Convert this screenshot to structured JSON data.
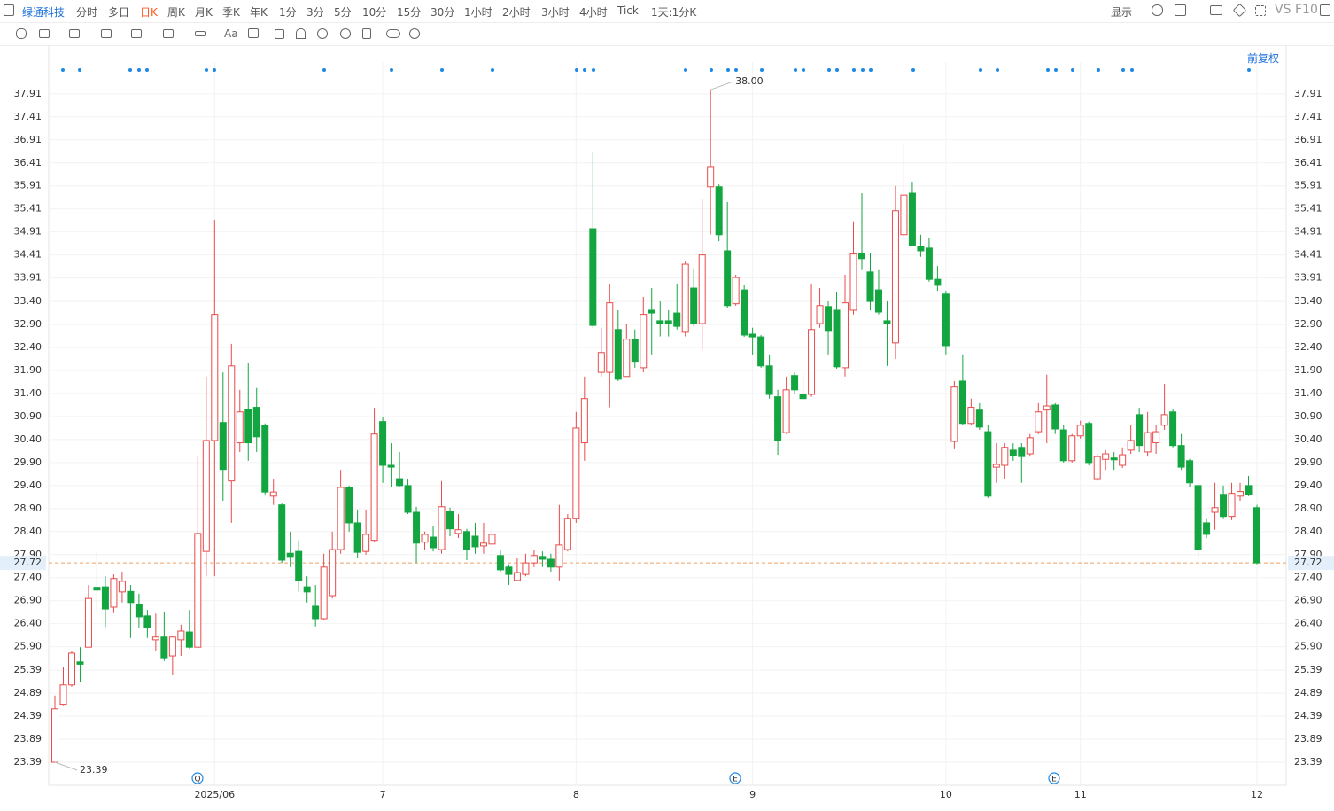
{
  "toolbar": {
    "stock": "绿通科技",
    "periods": [
      "分时",
      "多日",
      "日K",
      "周K",
      "月K",
      "季K",
      "年K",
      "1分",
      "3分",
      "5分",
      "10分",
      "15分",
      "30分",
      "1小时",
      "2小时",
      "3小时",
      "4小时",
      "Tick"
    ],
    "custom": "1天:1分K",
    "display": "显示",
    "vs": "VS",
    "f10": "F10",
    "text_tool": "Aa",
    "adjust": "前复权"
  },
  "badges": [
    "Q",
    "E",
    "E"
  ],
  "chart_data": {
    "type": "candlestick",
    "up_color": "#e84a4a",
    "down_color": "#13a640",
    "grid": true,
    "ylim": [
      22.89,
      38.6
    ],
    "yticks": [
      23.39,
      23.89,
      24.39,
      24.89,
      25.39,
      {
        "value": 25.9,
        "label": "25.90"
      },
      {
        "value": 26.4,
        "label": "26.40"
      },
      {
        "value": 26.9,
        "label": "26.90"
      },
      {
        "value": 27.4,
        "label": "27.40"
      },
      {
        "value": 27.9,
        "label": "27.90"
      },
      {
        "value": 28.4,
        "label": "28.40"
      },
      {
        "value": 28.9,
        "label": "28.90"
      },
      {
        "value": 29.4,
        "label": "29.40"
      },
      {
        "value": 29.9,
        "label": "29.90"
      },
      {
        "value": 30.4,
        "label": "30.40"
      },
      {
        "value": 30.9,
        "label": "30.90"
      },
      {
        "value": 31.4,
        "label": "31.40"
      },
      {
        "value": 31.9,
        "label": "31.90"
      },
      {
        "value": 32.4,
        "label": "32.40"
      },
      {
        "value": 32.9,
        "label": "32.90"
      },
      {
        "value": 33.4,
        "label": "33.40"
      },
      33.91,
      34.41,
      34.91,
      35.41,
      35.91,
      36.41,
      36.91,
      37.41,
      37.91
    ],
    "last_price": 27.72,
    "annotations": [
      {
        "value": 38,
        "label": "38.00"
      },
      {
        "value": 23.39,
        "label": "23.39"
      }
    ],
    "categories": [
      null,
      null,
      null,
      null,
      null,
      null,
      null,
      null,
      null,
      null,
      null,
      null,
      null,
      null,
      null,
      null,
      null,
      null,
      null,
      "2025/06",
      null,
      null,
      null,
      null,
      null,
      null,
      null,
      null,
      null,
      null,
      null,
      null,
      null,
      null,
      null,
      null,
      null,
      null,
      null,
      "7",
      null,
      null,
      null,
      null,
      null,
      null,
      null,
      null,
      null,
      null,
      null,
      null,
      null,
      null,
      null,
      null,
      null,
      null,
      null,
      null,
      null,
      null,
      "8",
      null,
      null,
      null,
      null,
      null,
      null,
      null,
      null,
      null,
      null,
      null,
      null,
      null,
      null,
      null,
      null,
      null,
      null,
      null,
      null,
      "9",
      null,
      null,
      null,
      null,
      null,
      null,
      null,
      null,
      null,
      null,
      null,
      null,
      null,
      null,
      null,
      null,
      null,
      null,
      null,
      null,
      null,
      null,
      "10",
      null,
      null,
      null,
      null,
      null,
      null,
      null,
      null,
      null,
      null,
      null,
      null,
      null,
      null,
      null,
      "11",
      null,
      null,
      null,
      null,
      null,
      null,
      null,
      null,
      null,
      null,
      null,
      null,
      null,
      null,
      null,
      null,
      null,
      null,
      null,
      null,
      "12"
    ],
    "open": [
      23.39,
      24.65,
      25.07,
      25.57,
      25.89,
      27.19,
      27.2,
      26.76,
      27.09,
      27.1,
      26.82,
      26.57,
      26.05,
      26.11,
      25.7,
      26.05,
      26.22,
      25.89,
      27.97,
      30.38,
      30.77,
      29.5,
      30.33,
      31.06,
      31.1,
      30.71,
      29.17,
      28.98,
      27.93,
      27.97,
      27.2,
      26.78,
      26.51,
      27.01,
      28.01,
      29.36,
      28.59,
      27.97,
      28.21,
      30.79,
      29.84,
      29.55,
      29.4,
      28.82,
      28.17,
      28.28,
      28.01,
      28.84,
      28.36,
      28.4,
      28.3,
      28.09,
      28.13,
      27.88,
      27.63,
      27.34,
      27.47,
      27.72,
      27.86,
      27.8,
      27.63,
      28.01,
      28.69,
      30.33,
      34.98,
      31.86,
      31.86,
      32.79,
      31.77,
      32.58,
      31.96,
      33.21,
      32.98,
      32.98,
      33.15,
      32.73,
      33.69,
      32.92,
      35.89,
      35.89,
      34.5,
      33.35,
      33.65,
      32.69,
      32.63,
      32,
      31.33,
      30.55,
      31.79,
      31.38,
      31.38,
      32.92,
      33.29,
      33.21,
      31.96,
      33.21,
      34.45,
      34.04,
      33.65,
      32.98,
      32.5,
      34.85,
      35.75,
      34.6,
      34.56,
      33.88,
      33.56,
      30.36,
      31.67,
      30.75,
      31.04,
      30.57,
      29.8,
      29.84,
      30.17,
      30.23,
      30.09,
      30.57,
      31.04,
      31.15,
      30.61,
      29.94,
      30.48,
      30.75,
      29.55,
      29.97,
      30,
      29.84,
      30.17,
      30.94,
      30.13,
      30.33,
      30.71,
      31,
      30.27,
      29.94,
      29.4,
      28.59,
      28.82,
      29.21,
      28.73,
      29.17,
      29.4,
      28.92
    ],
    "high": [
      24.84,
      25.47,
      25.8,
      25.89,
      27.24,
      27.95,
      27.43,
      27.47,
      27.53,
      27.24,
      27.05,
      26.7,
      26.62,
      26.66,
      26.13,
      26.38,
      26.7,
      30.03,
      31.77,
      35.17,
      31.86,
      32.48,
      31.48,
      32.06,
      31.52,
      30.75,
      29.55,
      29.01,
      28.4,
      28.21,
      27.43,
      27.24,
      27.92,
      28.4,
      29.74,
      29.4,
      28.88,
      28.88,
      31.09,
      30.9,
      30.32,
      30.13,
      29.55,
      28.94,
      28.4,
      28.51,
      29.5,
      28.92,
      28.78,
      28.46,
      28.59,
      28.59,
      28.46,
      28.01,
      27.69,
      27.82,
      27.92,
      28.01,
      27.97,
      27.92,
      28.98,
      28.78,
      31,
      31.77,
      36.64,
      32.83,
      33.79,
      33.21,
      32.92,
      32.79,
      33.5,
      33.69,
      33.4,
      33.21,
      33.79,
      34.27,
      34.12,
      35.62,
      38,
      35.94,
      35.56,
      33.98,
      33.75,
      32.83,
      32.67,
      32.25,
      31.48,
      31.77,
      31.86,
      31.86,
      33.79,
      33.69,
      33.4,
      33.6,
      33.98,
      35.14,
      35.75,
      34.46,
      34.08,
      33.4,
      35.91,
      36.81,
      36,
      34.85,
      34.79,
      34.17,
      33.63,
      31.67,
      32.25,
      31.29,
      31.19,
      30.71,
      30.32,
      30.32,
      30.32,
      30.32,
      30.52,
      31.19,
      31.81,
      31.19,
      30.71,
      30.52,
      30.81,
      30.79,
      30.09,
      30.17,
      30.13,
      30.23,
      30.71,
      31.09,
      31,
      30.71,
      31.61,
      31.06,
      30.52,
      29.98,
      29.46,
      28.69,
      29.46,
      29.4,
      29.46,
      29.46,
      29.61,
      28.98
    ],
    "low": [
      23.39,
      24.63,
      25.03,
      25.13,
      25.89,
      26.66,
      26.33,
      26.63,
      26.86,
      26.09,
      26.32,
      26.09,
      25.8,
      25.59,
      25.28,
      25.7,
      25.86,
      25.89,
      27.43,
      27.43,
      29.07,
      28.59,
      30.13,
      29.94,
      30.13,
      29.21,
      28.98,
      27.72,
      27.63,
      27.09,
      26.86,
      26.34,
      26.47,
      26.95,
      27.92,
      28.4,
      27.82,
      27.9,
      28.17,
      29.46,
      29.36,
      29.36,
      28.78,
      27.72,
      28.01,
      27.97,
      27.92,
      28.3,
      28.26,
      27.78,
      27.92,
      27.92,
      27.82,
      27.53,
      27.24,
      27.34,
      27.43,
      27.63,
      27.63,
      27.53,
      27.34,
      27.97,
      28.59,
      29.94,
      32.83,
      31.77,
      31.1,
      31.67,
      31.77,
      31.96,
      31.86,
      32.25,
      32.64,
      32.64,
      32.79,
      32.64,
      32.86,
      32.35,
      34.85,
      34.71,
      33.25,
      33.31,
      32.63,
      32.25,
      31.96,
      31.29,
      30.07,
      30.52,
      31.38,
      31.25,
      31.33,
      32.83,
      32.25,
      31.94,
      31.77,
      33.12,
      34.08,
      33.21,
      33.12,
      32,
      32.15,
      34.79,
      34.6,
      34.37,
      33.83,
      33.63,
      32.25,
      30.19,
      30.71,
      30.71,
      30.61,
      29.13,
      29.46,
      29.55,
      29.94,
      29.46,
      30.03,
      30.52,
      30.32,
      30.52,
      29.9,
      29.9,
      30.42,
      29.84,
      29.5,
      29.74,
      29.74,
      29.78,
      30.09,
      30.13,
      30.03,
      30.09,
      30.61,
      30.23,
      29.74,
      29.36,
      27.86,
      28.26,
      28.44,
      28.69,
      28.65,
      29.07,
      29.17,
      27.69
    ],
    "close": [
      24.55,
      25.07,
      25.76,
      25.52,
      26.95,
      27.13,
      26.72,
      27.38,
      27.32,
      26.86,
      26.55,
      26.32,
      26.11,
      25.66,
      26.11,
      26.24,
      25.89,
      28.36,
      30.38,
      33.12,
      29.75,
      32,
      31,
      30.33,
      30.46,
      29.26,
      29.26,
      27.78,
      27.86,
      27.34,
      27.09,
      26.51,
      27.63,
      28.01,
      29.36,
      28.59,
      27.95,
      28.34,
      30.52,
      29.84,
      29.8,
      29.4,
      28.82,
      28.15,
      28.34,
      28.05,
      28.94,
      28.46,
      28.44,
      28.01,
      28.07,
      28.15,
      28.34,
      27.57,
      27.47,
      27.51,
      27.72,
      27.88,
      27.8,
      27.63,
      28.11,
      28.69,
      30.65,
      31.29,
      32.88,
      32.29,
      33.37,
      31.71,
      32.58,
      32.1,
      33.12,
      33.15,
      32.92,
      32.92,
      32.86,
      34.21,
      32.92,
      34.41,
      36.33,
      34.85,
      33.31,
      33.92,
      32.67,
      32.63,
      32,
      31.38,
      30.38,
      31.48,
      31.48,
      31.29,
      32.79,
      33.31,
      32.75,
      31.98,
      33.37,
      34.43,
      34.33,
      33.4,
      33.17,
      32.92,
      35.37,
      35.71,
      34.62,
      34.5,
      33.88,
      33.75,
      32.44,
      31.54,
      30.75,
      31.1,
      30.67,
      29.17,
      29.86,
      30.23,
      30.05,
      30.03,
      30.44,
      31,
      31.13,
      30.63,
      29.94,
      30.48,
      30.71,
      29.9,
      30.03,
      30.09,
      29.96,
      30.07,
      30.38,
      30.27,
      30.55,
      30.57,
      30.94,
      30.27,
      29.8,
      29.46,
      28.01,
      28.34,
      28.92,
      28.73,
      29.23,
      29.27,
      29.21,
      27.72
    ]
  }
}
